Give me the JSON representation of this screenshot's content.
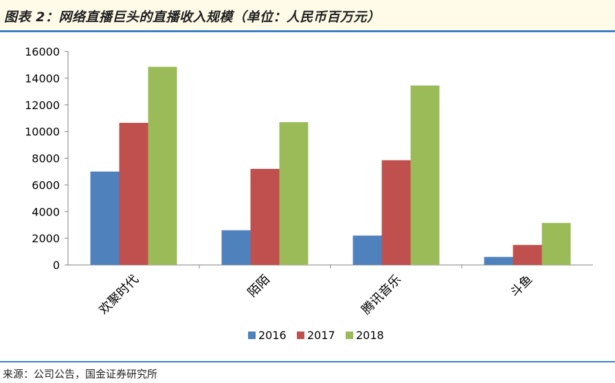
{
  "title": "图表 2：网络直播巨头的直播收入规模（单位：人民币百万元）",
  "source": "来源：公司公告，国金证券研究所",
  "colors": {
    "accent_rule": "#3d7fc4",
    "title_band": "#fffbe8"
  },
  "chart_data": {
    "type": "bar",
    "title": "",
    "xlabel": "",
    "ylabel": "",
    "categories": [
      "欢聚时代",
      "陌陌",
      "腾讯音乐",
      "斗鱼"
    ],
    "series": [
      {
        "name": "2016",
        "color": "#4f81bd",
        "values": [
          7000,
          2600,
          2200,
          600
        ]
      },
      {
        "name": "2017",
        "color": "#c0504d",
        "values": [
          10650,
          7200,
          7850,
          1500
        ]
      },
      {
        "name": "2018",
        "color": "#9bbb59",
        "values": [
          14850,
          10700,
          13450,
          3150
        ]
      }
    ],
    "ylim": [
      0,
      16000
    ],
    "yticks": [
      0,
      2000,
      4000,
      6000,
      8000,
      10000,
      12000,
      14000,
      16000
    ],
    "grid": false,
    "legend_position": "bottom"
  }
}
